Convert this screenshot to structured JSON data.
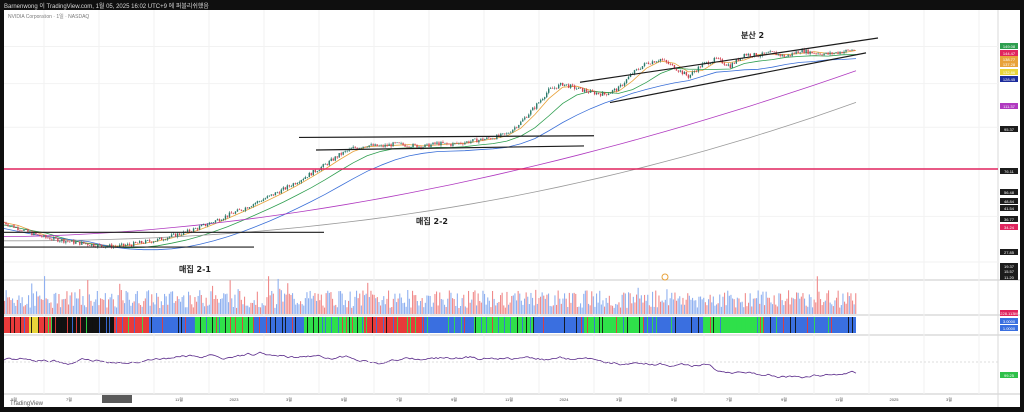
{
  "publisher_line": "Barnenwong 이 TradingView.com, 1월 05, 2025 16:02 UTC+9 에 퍼블리쉬했음",
  "symbol_line": "NVIDIA Corporation · 1일 · NASDAQ",
  "watermark": "TradingView",
  "colors": {
    "background": "#ffffff",
    "frame": "#0f0f0f",
    "trendline": "#1c1c1c",
    "pink_level": "#e0245e",
    "ma_fast": "#e8a23a",
    "ma_mid": "#2e9e4f",
    "ma_slow": "#3a6fd8",
    "ma_long": "#b03ac0",
    "ma_xlong": "#9a9a9a",
    "candle_up": "#2a7a6a",
    "candle_down": "#d04050",
    "volume_up": "#8fb0f0",
    "volume_down": "#f08a8a",
    "band_blue": "#3a6fe0",
    "band_green": "#2fe04a",
    "band_red": "#e83a3a",
    "band_black": "#111111",
    "band_yellow": "#e8d43a",
    "oscillator": "#5a2a8a",
    "oscillator_green": "#2fc04a"
  },
  "annotations": {
    "zone_1": "매집 2-1",
    "zone_2": "매집 2-2",
    "zone_3": "분산 2"
  },
  "price_axis_labels": [
    {
      "text": "149.08",
      "color": "#2e9e4f"
    },
    {
      "text": "144.47",
      "color": "#e0245e"
    },
    {
      "text": "138.77",
      "color": "#e8a23a"
    },
    {
      "text": "137.28",
      "color": "#e8a23a"
    },
    {
      "text": "132.86",
      "color": "#e8d43a"
    },
    {
      "text": "128.45",
      "color": "#1c2c9c"
    },
    {
      "text": "111.37",
      "color": "#b03ac0"
    },
    {
      "text": "95.37",
      "color": "#1c1c1c"
    },
    {
      "text": "76.11",
      "color": "#1c1c1c"
    },
    {
      "text": "56.48",
      "color": "#1c1c1c"
    },
    {
      "text": "48.84",
      "color": "#1c1c1c"
    },
    {
      "text": "41.54",
      "color": "#1c1c1c"
    },
    {
      "text": "36.77",
      "color": "#1c1c1c"
    },
    {
      "text": "34.24",
      "color": "#e0245e"
    },
    {
      "text": "27.85",
      "color": "#1c1c1c"
    },
    {
      "text": "19.37",
      "color": "#1c1c1c"
    },
    {
      "text": "15.57",
      "color": "#1c1c1c"
    },
    {
      "text": "11.20",
      "color": "#1c1c1c"
    }
  ],
  "volume_axis_labels": [
    {
      "text": "228.113M",
      "color": "#e0245e"
    }
  ],
  "band_axis_labels": [
    {
      "text": "3.0000",
      "color": "#3a6fe0"
    },
    {
      "text": "1.0000",
      "color": "#3a6fe0"
    }
  ],
  "oscillator_axis_labels": [
    {
      "text": "99.25",
      "color": "#2fc04a"
    }
  ],
  "time_axis_labels": [
    "5월",
    "7월",
    "9월",
    "11월",
    "2023",
    "3월",
    "5월",
    "7월",
    "9월",
    "11월",
    "2024",
    "3월",
    "5월",
    "7월",
    "9월",
    "11월",
    "2025",
    "3월"
  ],
  "chart_data": {
    "type": "candlestick",
    "title": "",
    "scale": "log",
    "price_closes": [
      18,
      16.8,
      15.8,
      15,
      14.6,
      14.2,
      13.9,
      13.6,
      13.5,
      13.8,
      14.2,
      14.6,
      15.3,
      16,
      17,
      18.2,
      19.6,
      21,
      22.8,
      24.6,
      26.8,
      29.5,
      32.5,
      36,
      40.5,
      44,
      45.5,
      44.8,
      46.2,
      45.5,
      44.8,
      46.5,
      46,
      47.2,
      48.5,
      49.8,
      52,
      60,
      72,
      88,
      95,
      90,
      86,
      84,
      90,
      108,
      122,
      128,
      116,
      104,
      120,
      128,
      118,
      136,
      134,
      138,
      132,
      142,
      138,
      136,
      140,
      144
    ],
    "moving_averages": {
      "ma_mid_start": 15,
      "ma_long_start": 15.2,
      "ma_long_end": 111.37,
      "ma_xlong_end": 76.11
    },
    "pink_level": 34.24,
    "channels": [
      {
        "name": "매집 2-1",
        "lower": 13.4,
        "upper": 16
      },
      {
        "name": "매집 2-2",
        "lower": 43,
        "upper": 51
      },
      {
        "name": "분산 2",
        "lower_start": 76,
        "lower_end": 138,
        "upper_start": 97,
        "upper_end": 165
      }
    ]
  }
}
